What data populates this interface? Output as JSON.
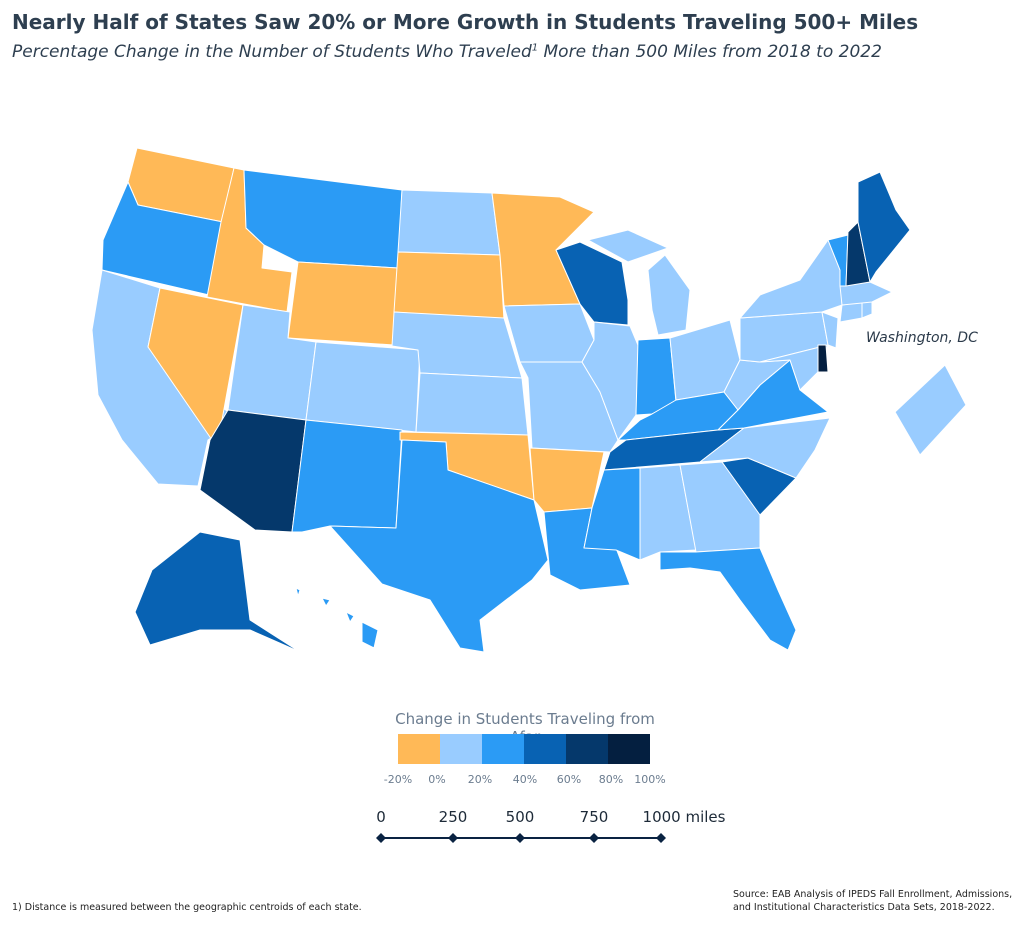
{
  "title": "Nearly Half of States Saw 20% or More Growth in Students Traveling 500+ Miles",
  "subtitle": {
    "text_before": "Percentage Change in the Number of Students Who Traveled",
    "superscript": "1",
    "text_after": " More than 500 Miles from 2018 to 2022"
  },
  "colors": {
    "neg": "#FFB957",
    "p0_20": "#99CCFF",
    "p20_40": "#2B9BF5",
    "p40_60": "#0862B3",
    "p60_80": "#05386B",
    "p80_100": "#041F40"
  },
  "state_labels": {
    "washington_dc": "Washington, DC"
  },
  "legend": {
    "title": "Change in Students Traveling from Afar",
    "bins": [
      "neg",
      "p0_20",
      "p20_40",
      "p40_60",
      "p60_80",
      "p80_100"
    ],
    "ticks": [
      "-20%",
      "0%",
      "20%",
      "40%",
      "60%",
      "80%",
      "100%"
    ]
  },
  "scale_bar": {
    "labels": [
      "0",
      "250",
      "500",
      "750",
      "1000 miles"
    ]
  },
  "footnote": "1)  Distance is measured between the geographic centroids of each state.",
  "source": {
    "line1": "Source: EAB Analysis of IPEDS Fall Enrollment, Admissions,",
    "line2": "and Institutional Characteristics Data Sets, 2018-2022."
  },
  "states": [
    {
      "name": "Washington",
      "bin": "neg"
    },
    {
      "name": "Oregon",
      "bin": "p20_40"
    },
    {
      "name": "California",
      "bin": "p0_20"
    },
    {
      "name": "Idaho",
      "bin": "neg"
    },
    {
      "name": "Nevada",
      "bin": "neg"
    },
    {
      "name": "Montana",
      "bin": "p20_40"
    },
    {
      "name": "Wyoming",
      "bin": "neg"
    },
    {
      "name": "Utah",
      "bin": "p0_20"
    },
    {
      "name": "Arizona",
      "bin": "p60_80"
    },
    {
      "name": "Colorado",
      "bin": "p0_20"
    },
    {
      "name": "New Mexico",
      "bin": "p20_40"
    },
    {
      "name": "North Dakota",
      "bin": "p0_20"
    },
    {
      "name": "South Dakota",
      "bin": "neg"
    },
    {
      "name": "Nebraska",
      "bin": "p0_20"
    },
    {
      "name": "Kansas",
      "bin": "p0_20"
    },
    {
      "name": "Oklahoma",
      "bin": "neg"
    },
    {
      "name": "Texas",
      "bin": "p20_40"
    },
    {
      "name": "Minnesota",
      "bin": "neg"
    },
    {
      "name": "Iowa",
      "bin": "p0_20"
    },
    {
      "name": "Missouri",
      "bin": "p0_20"
    },
    {
      "name": "Arkansas",
      "bin": "neg"
    },
    {
      "name": "Louisiana",
      "bin": "p20_40"
    },
    {
      "name": "Wisconsin",
      "bin": "p40_60"
    },
    {
      "name": "Illinois",
      "bin": "p0_20"
    },
    {
      "name": "Michigan",
      "bin": "p0_20"
    },
    {
      "name": "Indiana",
      "bin": "p20_40"
    },
    {
      "name": "Ohio",
      "bin": "p0_20"
    },
    {
      "name": "Kentucky",
      "bin": "p20_40"
    },
    {
      "name": "Tennessee",
      "bin": "p40_60"
    },
    {
      "name": "Mississippi",
      "bin": "p20_40"
    },
    {
      "name": "Alabama",
      "bin": "p0_20"
    },
    {
      "name": "Georgia",
      "bin": "p0_20"
    },
    {
      "name": "Florida",
      "bin": "p20_40"
    },
    {
      "name": "South Carolina",
      "bin": "p40_60"
    },
    {
      "name": "North Carolina",
      "bin": "p0_20"
    },
    {
      "name": "Virginia",
      "bin": "p20_40"
    },
    {
      "name": "West Virginia",
      "bin": "p0_20"
    },
    {
      "name": "Pennsylvania",
      "bin": "p0_20"
    },
    {
      "name": "New York",
      "bin": "p0_20"
    },
    {
      "name": "Maryland",
      "bin": "p0_20"
    },
    {
      "name": "Delaware",
      "bin": "p80_100"
    },
    {
      "name": "New Jersey",
      "bin": "p0_20"
    },
    {
      "name": "Connecticut",
      "bin": "p0_20"
    },
    {
      "name": "Rhode Island",
      "bin": "p0_20"
    },
    {
      "name": "Massachusetts",
      "bin": "p0_20"
    },
    {
      "name": "Vermont",
      "bin": "p20_40"
    },
    {
      "name": "New Hampshire",
      "bin": "p60_80"
    },
    {
      "name": "Maine",
      "bin": "p40_60"
    },
    {
      "name": "Alaska",
      "bin": "p40_60"
    },
    {
      "name": "Hawaii",
      "bin": "p20_40"
    },
    {
      "name": "District of Columbia",
      "bin": "p0_20"
    }
  ]
}
